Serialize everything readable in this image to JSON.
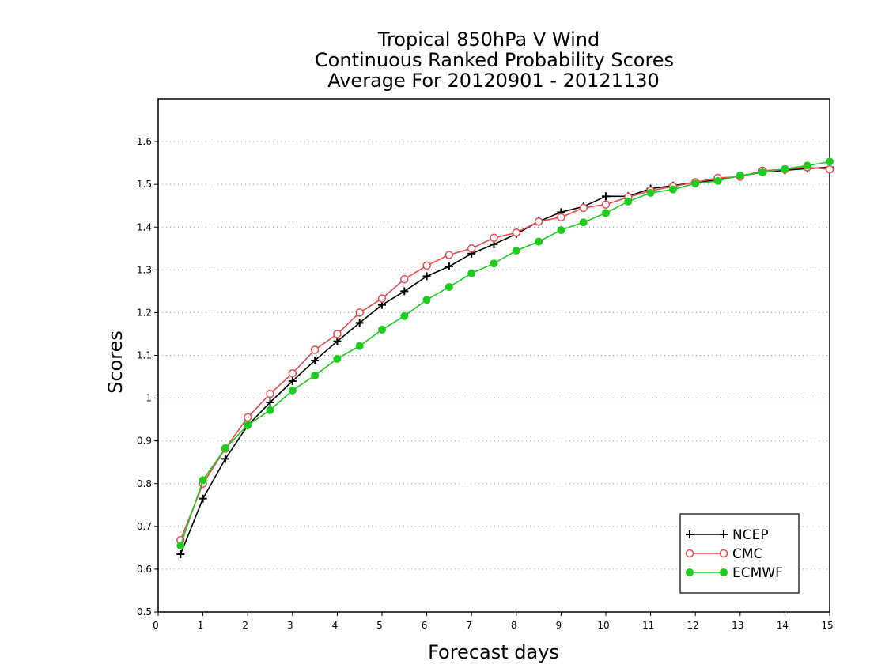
{
  "chart_data": {
    "type": "line",
    "title_lines": [
      "Tropical 850hPa V Wind",
      "Continuous Ranked Probability Scores",
      "Average For 20120901 - 20121130"
    ],
    "xlabel": "Forecast days",
    "ylabel": "Scores",
    "xlim": [
      0,
      15
    ],
    "ylim": [
      0.5,
      1.7
    ],
    "xticks": [
      0,
      1,
      2,
      3,
      4,
      5,
      6,
      7,
      8,
      9,
      10,
      11,
      12,
      13,
      14,
      15
    ],
    "xtick_labels": [
      "0",
      "1",
      "2",
      "3",
      "4",
      "5",
      "6",
      "7",
      "8",
      "9",
      "10",
      "11",
      "12",
      "13",
      "14",
      "15"
    ],
    "yticks": [
      0.5,
      0.6,
      0.7,
      0.8,
      0.9,
      1.0,
      1.1,
      1.2,
      1.3,
      1.4,
      1.5,
      1.6
    ],
    "ytick_labels": [
      "0.5",
      "0.6",
      "0.7",
      "0.8",
      "0.9",
      "1",
      "1.1",
      "1.2",
      "1.3",
      "1.4",
      "1.5",
      "1.6"
    ],
    "grid": "horizontal dotted",
    "legend_position": "bottom-right",
    "x": [
      0.5,
      1,
      1.5,
      2,
      2.5,
      3,
      3.5,
      4,
      4.5,
      5,
      5.5,
      6,
      6.5,
      7,
      7.5,
      8,
      8.5,
      9,
      9.5,
      10,
      10.5,
      11,
      11.5,
      12,
      12.5,
      13,
      13.5,
      14,
      14.5,
      15
    ],
    "series": [
      {
        "name": "NCEP",
        "color": "#000000",
        "marker": "plus",
        "values": [
          0.635,
          0.765,
          0.858,
          0.936,
          0.99,
          1.04,
          1.088,
          1.133,
          1.176,
          1.218,
          1.25,
          1.285,
          1.308,
          1.338,
          1.36,
          1.384,
          1.413,
          1.435,
          1.448,
          1.472,
          1.472,
          1.49,
          1.497,
          1.505,
          1.51,
          1.52,
          1.528,
          1.533,
          1.537,
          1.54
        ]
      },
      {
        "name": "CMC",
        "color": "#e8484c",
        "marker": "open-circle",
        "values": [
          0.668,
          0.8,
          0.882,
          0.955,
          1.01,
          1.058,
          1.113,
          1.15,
          1.2,
          1.233,
          1.278,
          1.31,
          1.335,
          1.35,
          1.375,
          1.387,
          1.413,
          1.423,
          1.445,
          1.453,
          1.47,
          1.485,
          1.495,
          1.505,
          1.515,
          1.518,
          1.532,
          1.535,
          1.54,
          1.535
        ]
      },
      {
        "name": "ECMWF",
        "color": "#1ecc1e",
        "marker": "filled-circle",
        "values": [
          0.655,
          0.808,
          0.883,
          0.937,
          0.972,
          1.018,
          1.053,
          1.092,
          1.122,
          1.16,
          1.192,
          1.23,
          1.26,
          1.292,
          1.315,
          1.345,
          1.366,
          1.393,
          1.411,
          1.433,
          1.46,
          1.48,
          1.488,
          1.502,
          1.508,
          1.521,
          1.528,
          1.536,
          1.544,
          1.553
        ]
      }
    ]
  }
}
